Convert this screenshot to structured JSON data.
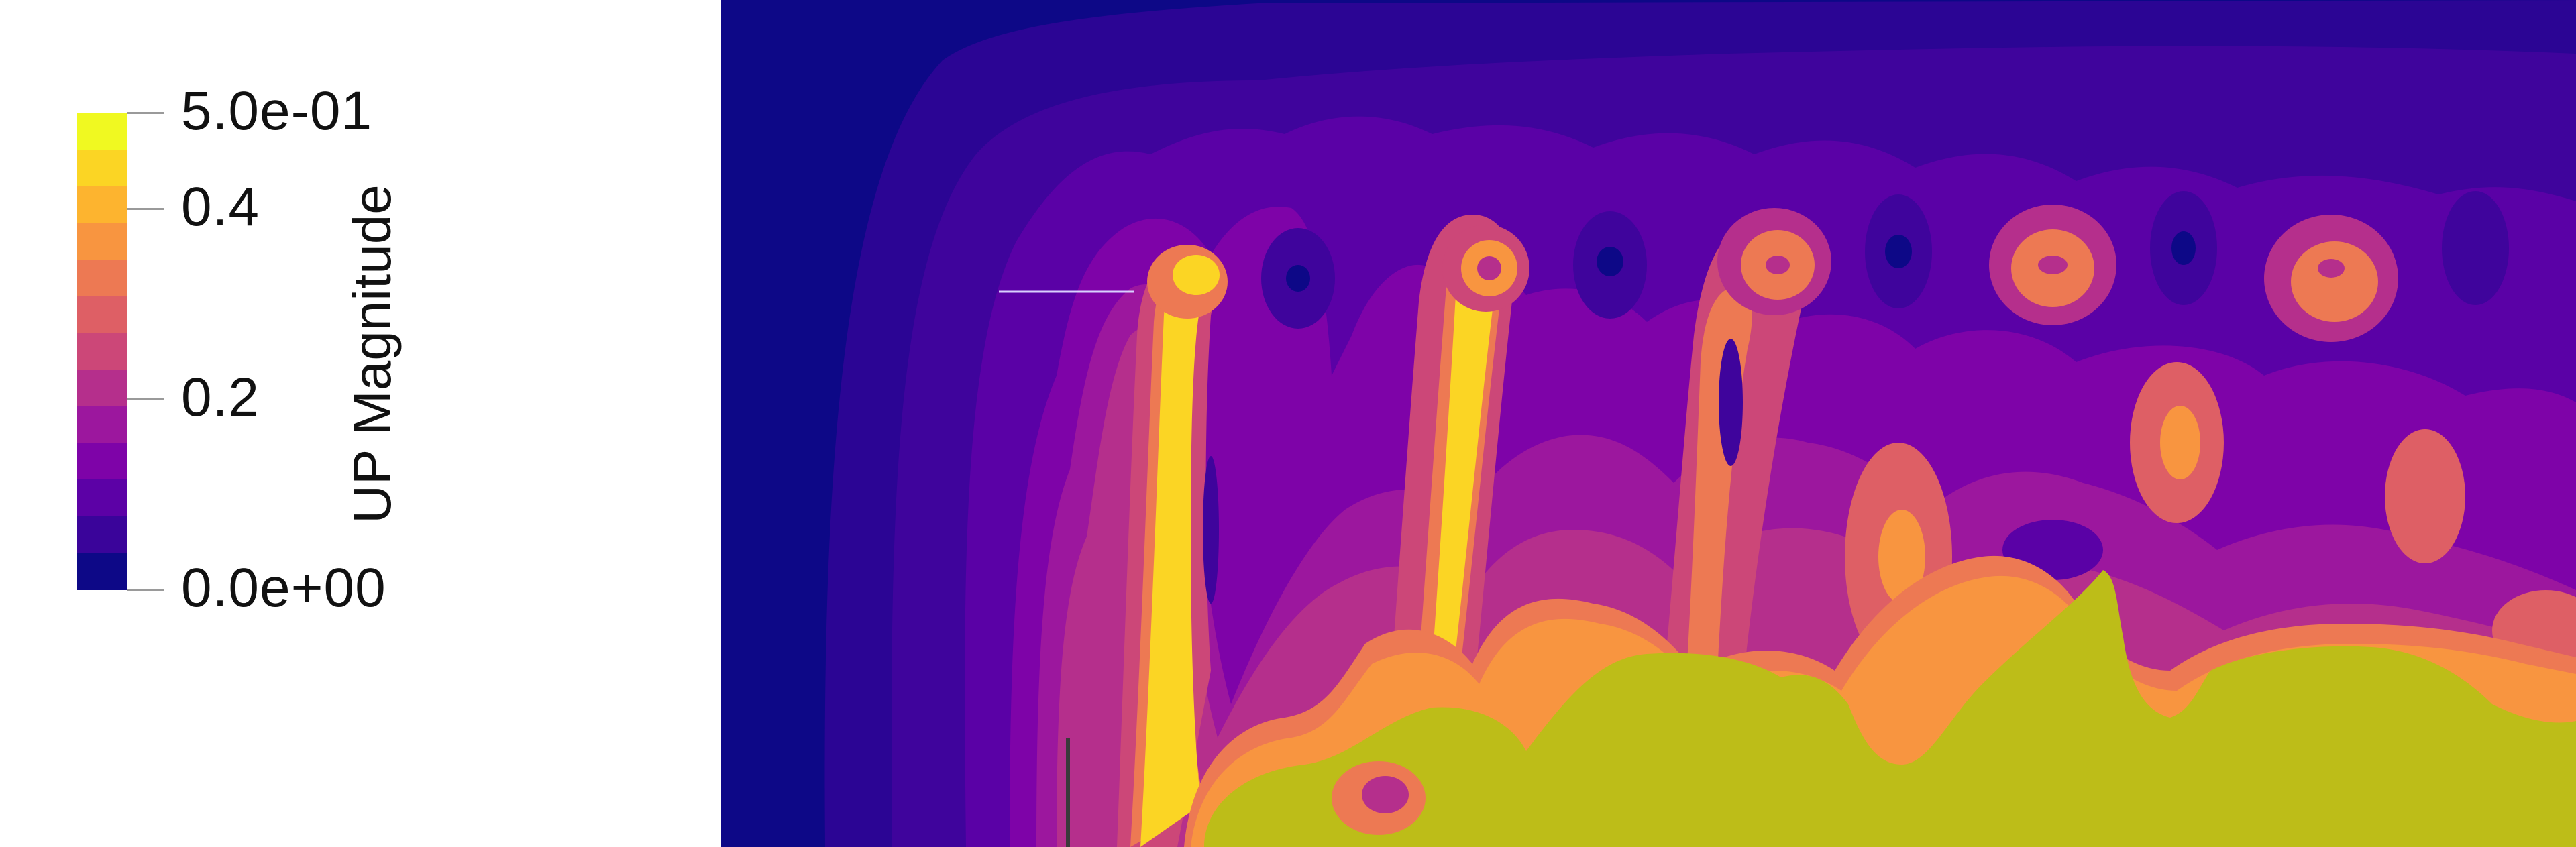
{
  "scalar_bar": {
    "title": "UP Magnitude",
    "tick_labels": [
      "5.0e-01",
      "0.4",
      "0.2",
      "0.0e+00"
    ],
    "tick_values": [
      0.5,
      0.4,
      0.2,
      0.0
    ],
    "range": [
      0.0,
      0.5
    ],
    "colors": [
      "#0d0887",
      "#3a049a",
      "#5c01a6",
      "#7e03a8",
      "#9c179e",
      "#b52f8c",
      "#cc4778",
      "#de5f65",
      "#ed7953",
      "#f89540",
      "#fdb42f",
      "#fbd524",
      "#f0f921"
    ]
  },
  "render_view": {
    "background": "#0d0887",
    "plume_color": "#bdbd18",
    "annotation_line_color": "#d8d0ff"
  }
}
